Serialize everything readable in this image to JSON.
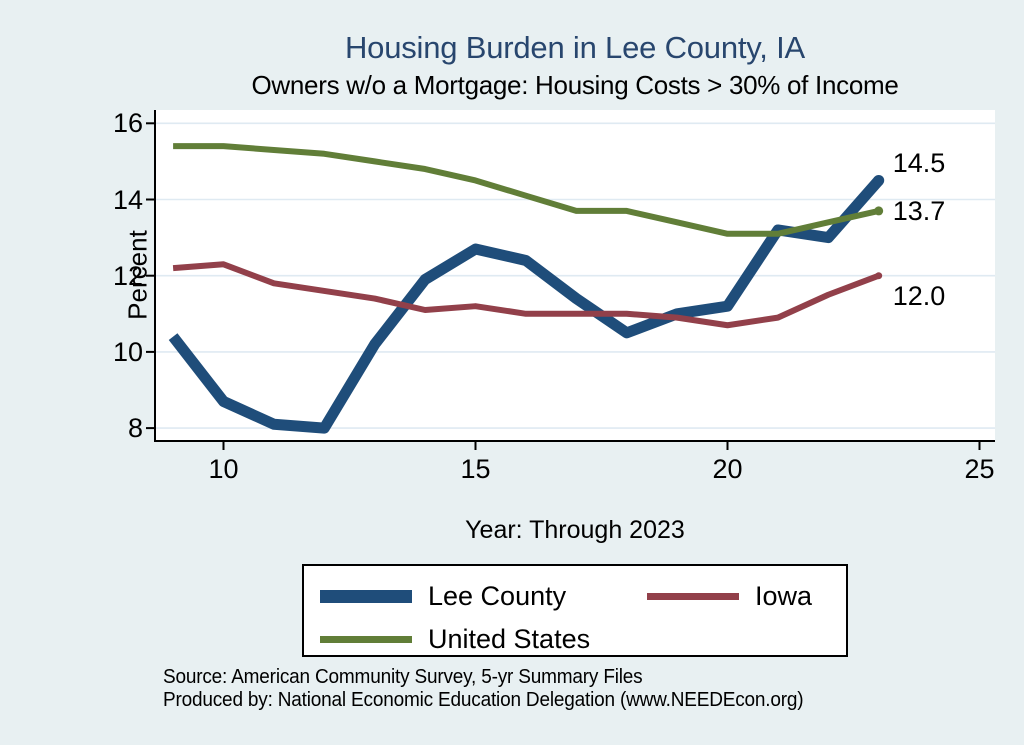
{
  "chart_data": {
    "type": "line",
    "title": "Housing Burden in Lee County, IA",
    "subtitle": "Owners w/o a Mortgage: Housing Costs > 30% of Income",
    "xlabel": "Year: Through 2023",
    "ylabel": "Percent",
    "x_years": [
      2009,
      2010,
      2011,
      2012,
      2013,
      2014,
      2015,
      2016,
      2017,
      2018,
      2019,
      2020,
      2021,
      2022,
      2023
    ],
    "xticks": [
      10,
      15,
      20,
      25
    ],
    "yticks": [
      8,
      10,
      12,
      14,
      16
    ],
    "xlim": [
      8.64,
      25.31
    ],
    "ylim": [
      7.67,
      16.35
    ],
    "grid": "horizontal",
    "legend_position": "bottom",
    "series": [
      {
        "name": "Lee County",
        "color": "#1f4d7a",
        "stroke_width": 11,
        "marker_radius": 5.5,
        "end_label": "14.5",
        "end_label_dy": -17,
        "values": [
          10.4,
          8.7,
          8.1,
          8.0,
          10.2,
          11.9,
          12.7,
          12.4,
          11.4,
          10.5,
          11.0,
          11.2,
          13.2,
          13.0,
          14.5
        ]
      },
      {
        "name": "Iowa",
        "color": "#92404a",
        "stroke_width": 6,
        "marker_radius": 3.5,
        "end_label": "12.0",
        "end_label_dy": 20,
        "values": [
          12.2,
          12.3,
          11.8,
          11.6,
          11.4,
          11.1,
          11.2,
          11.0,
          11.0,
          11.0,
          10.9,
          10.7,
          10.9,
          11.5,
          12.0
        ]
      },
      {
        "name": "United States",
        "color": "#617e38",
        "stroke_width": 6,
        "marker_radius": 4.5,
        "end_label": "13.7",
        "end_label_dy": 0,
        "values": [
          15.4,
          15.4,
          15.3,
          15.2,
          15.0,
          14.8,
          14.5,
          14.1,
          13.7,
          13.7,
          13.4,
          13.1,
          13.1,
          13.4,
          13.7
        ]
      }
    ],
    "colors": {
      "page_background": "#e8f0f2",
      "plot_background": "#ffffff",
      "gridline": "#dfeaf2",
      "axis": "#000000",
      "title": "#28466e"
    }
  },
  "footer": {
    "source_line": "Source: American Community Survey, 5-yr Summary Files",
    "produced_line": "Produced by: National Economic Education Delegation (www.NEEDEcon.org)"
  }
}
